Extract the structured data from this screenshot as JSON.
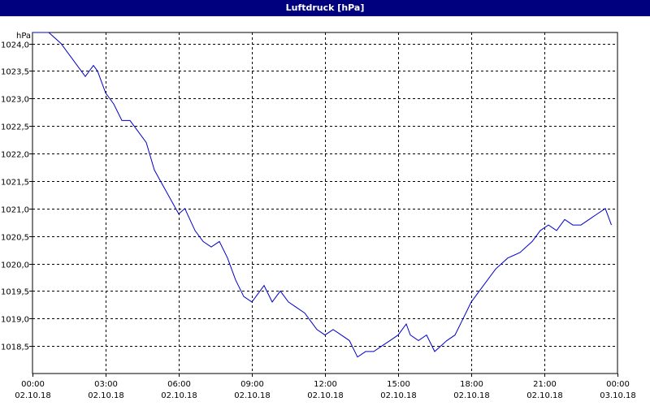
{
  "window": {
    "title": "Luftdruck [hPa]"
  },
  "chart_data": {
    "type": "line",
    "title": "Luftdruck [hPa]",
    "ylabel": "hPa",
    "xlabel": "",
    "ylim": [
      1018.0,
      1024.2
    ],
    "grid": true,
    "line_color": "#0000cc",
    "y_ticks": [
      "1024,0",
      "1023,5",
      "1023,0",
      "1022,5",
      "1022,0",
      "1021,5",
      "1021,0",
      "1020,5",
      "1020,0",
      "1019,5",
      "1019,0",
      "1018,5"
    ],
    "y_tick_values": [
      1024.0,
      1023.5,
      1023.0,
      1022.5,
      1022.0,
      1021.5,
      1021.0,
      1020.5,
      1020.0,
      1019.5,
      1019.0,
      1018.5
    ],
    "x_ticks": [
      {
        "time": "00:00",
        "date": "02.10.18"
      },
      {
        "time": "03:00",
        "date": "02.10.18"
      },
      {
        "time": "06:00",
        "date": "02.10.18"
      },
      {
        "time": "09:00",
        "date": "02.10.18"
      },
      {
        "time": "12:00",
        "date": "02.10.18"
      },
      {
        "time": "15:00",
        "date": "02.10.18"
      },
      {
        "time": "18:00",
        "date": "02.10.18"
      },
      {
        "time": "21:00",
        "date": "02.10.18"
      },
      {
        "time": "00:00",
        "date": "03.10.18"
      }
    ],
    "x": [
      "02.10.18 00:00",
      "02.10.18 00:40",
      "02.10.18 01:10",
      "02.10.18 01:30",
      "02.10.18 02:00",
      "02.10.18 02:10",
      "02.10.18 02:30",
      "02.10.18 02:40",
      "02.10.18 03:00",
      "02.10.18 03:20",
      "02.10.18 03:40",
      "02.10.18 04:00",
      "02.10.18 04:20",
      "02.10.18 04:40",
      "02.10.18 05:00",
      "02.10.18 05:30",
      "02.10.18 06:00",
      "02.10.18 06:15",
      "02.10.18 06:40",
      "02.10.18 07:00",
      "02.10.18 07:20",
      "02.10.18 07:40",
      "02.10.18 08:00",
      "02.10.18 08:20",
      "02.10.18 08:40",
      "02.10.18 09:00",
      "02.10.18 09:20",
      "02.10.18 09:30",
      "02.10.18 09:50",
      "02.10.18 10:10",
      "02.10.18 10:30",
      "02.10.18 10:50",
      "02.10.18 11:10",
      "02.10.18 11:40",
      "02.10.18 12:00",
      "02.10.18 12:20",
      "02.10.18 12:40",
      "02.10.18 13:00",
      "02.10.18 13:20",
      "02.10.18 13:40",
      "02.10.18 14:00",
      "02.10.18 14:20",
      "02.10.18 14:40",
      "02.10.18 15:00",
      "02.10.18 15:20",
      "02.10.18 15:30",
      "02.10.18 15:50",
      "02.10.18 16:10",
      "02.10.18 16:30",
      "02.10.18 16:45",
      "02.10.18 17:00",
      "02.10.18 17:20",
      "02.10.18 17:40",
      "02.10.18 18:00",
      "02.10.18 18:30",
      "02.10.18 19:00",
      "02.10.18 19:30",
      "02.10.18 20:00",
      "02.10.18 20:30",
      "02.10.18 20:50",
      "02.10.18 21:10",
      "02.10.18 21:30",
      "02.10.18 21:50",
      "02.10.18 22:10",
      "02.10.18 22:30",
      "02.10.18 22:50",
      "02.10.18 23:10",
      "02.10.18 23:30",
      "02.10.18 23:45"
    ],
    "series": [
      {
        "values": [
          1024.2,
          1024.2,
          1024.0,
          1023.8,
          1023.5,
          1023.4,
          1023.6,
          1023.5,
          1023.1,
          1022.9,
          1022.6,
          1022.6,
          1022.4,
          1022.2,
          1021.7,
          1021.3,
          1020.9,
          1021.0,
          1020.6,
          1020.4,
          1020.3,
          1020.4,
          1020.1,
          1019.7,
          1019.4,
          1019.3,
          1019.5,
          1019.6,
          1019.3,
          1019.5,
          1019.3,
          1019.2,
          1019.1,
          1018.8,
          1018.7,
          1018.8,
          1018.7,
          1018.6,
          1018.3,
          1018.4,
          1018.4,
          1018.5,
          1018.6,
          1018.7,
          1018.9,
          1018.7,
          1018.6,
          1018.7,
          1018.4,
          1018.5,
          1018.6,
          1018.7,
          1019.0,
          1019.3,
          1019.6,
          1019.9,
          1020.1,
          1020.2,
          1020.4,
          1020.6,
          1020.7,
          1020.6,
          1020.8,
          1020.7,
          1020.7,
          1020.8,
          1020.9,
          1021.0,
          1020.7
        ]
      }
    ]
  }
}
